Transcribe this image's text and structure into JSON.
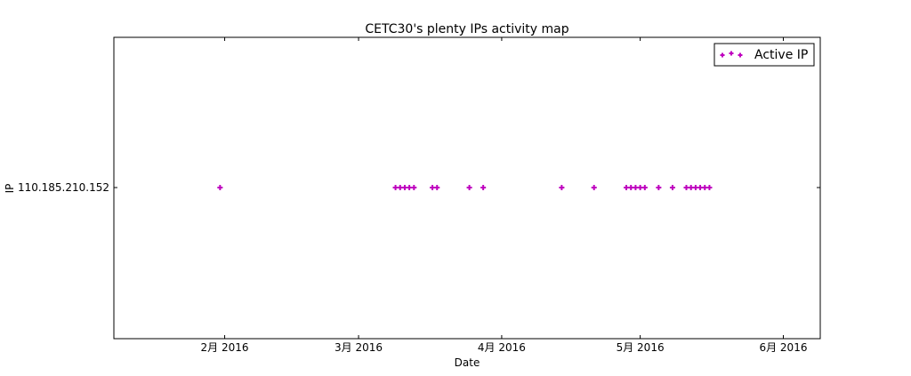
{
  "chart_data": {
    "type": "scatter",
    "title": "CETC30's plenty IPs activity map",
    "xlabel": "Date",
    "ylabel": "IP",
    "x_ticks": [
      {
        "label": "2月 2016",
        "date": "2016-02-01"
      },
      {
        "label": "3月 2016",
        "date": "2016-03-01"
      },
      {
        "label": "4月 2016",
        "date": "2016-04-01"
      },
      {
        "label": "5月 2016",
        "date": "2016-05-01"
      },
      {
        "label": "6月 2016",
        "date": "2016-06-01"
      }
    ],
    "xlim": [
      "2016-01-08",
      "2016-06-09"
    ],
    "y_categories": [
      "110.185.210.152"
    ],
    "legend": {
      "label": "Active IP",
      "position": "top-right"
    },
    "color": "#bf00bf",
    "marker": "plus",
    "series": [
      {
        "name": "Active IP",
        "category": "110.185.210.152",
        "dates": [
          "2016-01-31",
          "2016-03-09",
          "2016-03-10",
          "2016-03-11",
          "2016-03-12",
          "2016-03-13",
          "2016-03-17",
          "2016-03-18",
          "2016-03-25",
          "2016-03-28",
          "2016-04-14",
          "2016-04-21",
          "2016-04-28",
          "2016-04-29",
          "2016-04-30",
          "2016-05-01",
          "2016-05-02",
          "2016-05-05",
          "2016-05-08",
          "2016-05-11",
          "2016-05-12",
          "2016-05-13",
          "2016-05-14",
          "2016-05-15",
          "2016-05-16"
        ]
      }
    ]
  }
}
